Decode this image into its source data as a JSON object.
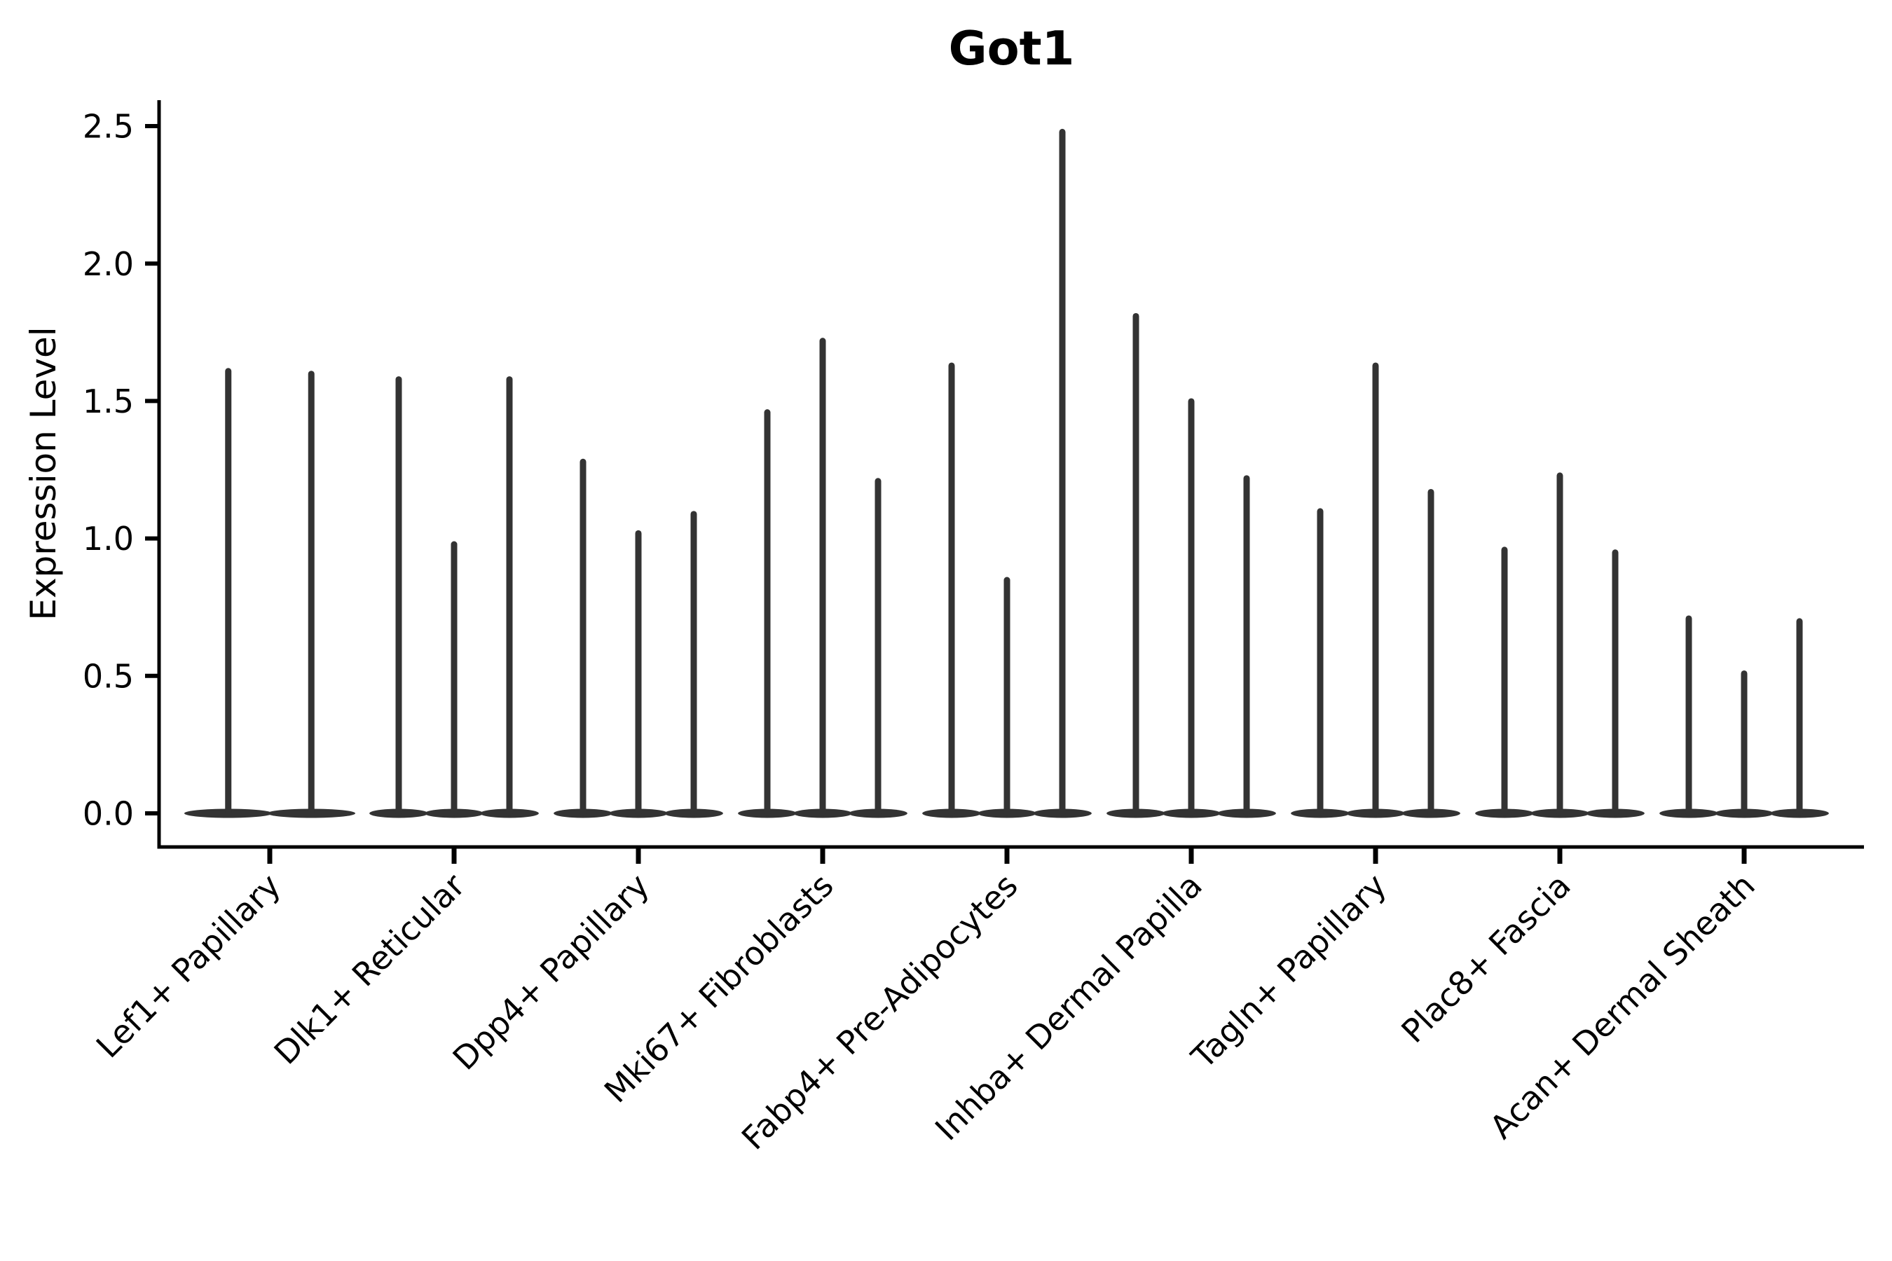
{
  "figure": {
    "title": "Got1",
    "ylabel": "Expression Level"
  },
  "chart_data": {
    "type": "violin",
    "title": "Got1",
    "xlabel": "",
    "ylabel": "Expression Level",
    "yticks": [
      0.0,
      0.5,
      1.0,
      1.5,
      2.0,
      2.5
    ],
    "ylim": [
      -0.12,
      2.59
    ],
    "grid": false,
    "legend": "none",
    "violin_color": "#333333",
    "axis_color": "#000000",
    "categories": [
      "Lef1+ Papillary",
      "Dlk1+ Reticular",
      "Dpp4+ Papillary",
      "Mki67+ Fibroblasts",
      "Fabp4+ Pre-Adipocytes",
      "Inhba+ Dermal Papilla",
      "Tagln+ Papillary",
      "Plac8+ Fascia",
      "Acan+ Dermal Sheath"
    ],
    "groups": [
      {
        "label": "Lef1+ Papillary",
        "violin_max_values": [
          1.62,
          1.61
        ]
      },
      {
        "label": "Dlk1+ Reticular",
        "violin_max_values": [
          1.59,
          0.99,
          1.59
        ]
      },
      {
        "label": "Dpp4+ Papillary",
        "violin_max_values": [
          1.29,
          1.03,
          1.1
        ]
      },
      {
        "label": "Mki67+ Fibroblasts",
        "violin_max_values": [
          1.47,
          1.73,
          1.22
        ]
      },
      {
        "label": "Fabp4+ Pre-Adipocytes",
        "violin_max_values": [
          1.64,
          0.86,
          2.49
        ]
      },
      {
        "label": "Inhba+ Dermal Papilla",
        "violin_max_values": [
          1.82,
          1.51,
          1.23
        ]
      },
      {
        "label": "Tagln+ Papillary",
        "violin_max_values": [
          1.11,
          1.64,
          1.18
        ]
      },
      {
        "label": "Plac8+ Fascia",
        "violin_max_values": [
          0.97,
          1.24,
          0.96
        ]
      },
      {
        "label": "Acan+ Dermal Sheath",
        "violin_max_values": [
          0.72,
          0.52,
          0.71
        ]
      }
    ]
  }
}
